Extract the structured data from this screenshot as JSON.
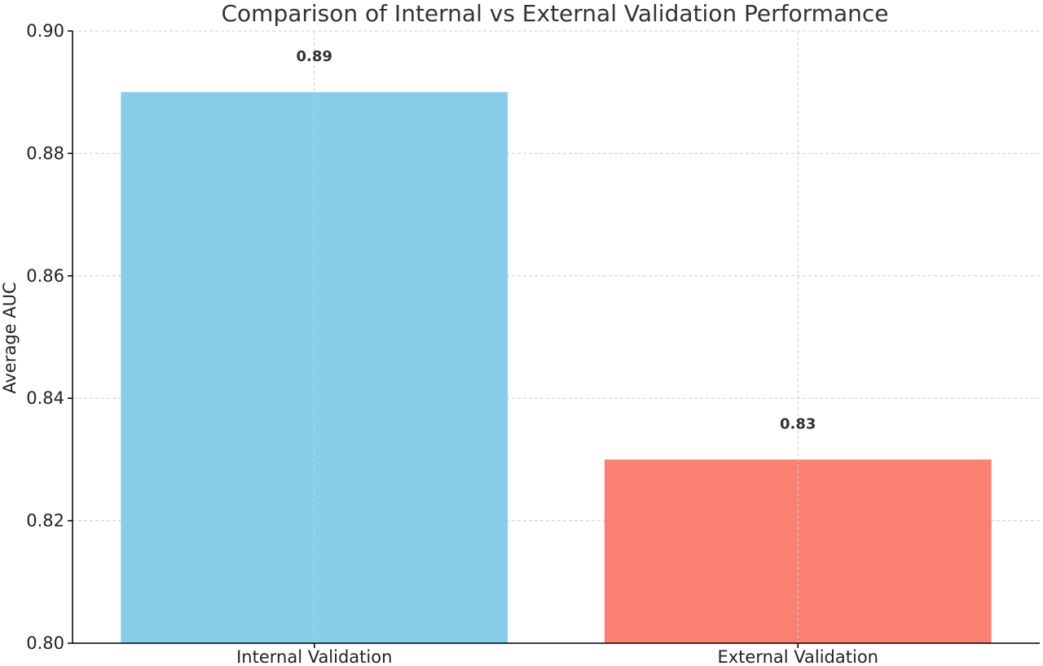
{
  "chart_data": {
    "type": "bar",
    "title": "Comparison of Internal vs External Validation Performance",
    "xlabel": "",
    "ylabel": "Average AUC",
    "categories": [
      "Internal Validation",
      "External Validation"
    ],
    "values": [
      0.89,
      0.83
    ],
    "value_labels": [
      "0.89",
      "0.83"
    ],
    "colors": [
      "#87ceeb",
      "#fa8072"
    ],
    "ylim": [
      0.8,
      0.9
    ],
    "yticks": [
      0.8,
      0.82,
      0.84,
      0.86,
      0.88,
      0.9
    ],
    "ytick_labels": [
      "0.80",
      "0.82",
      "0.84",
      "0.86",
      "0.88",
      "0.90"
    ],
    "grid": true,
    "legend": "none"
  }
}
